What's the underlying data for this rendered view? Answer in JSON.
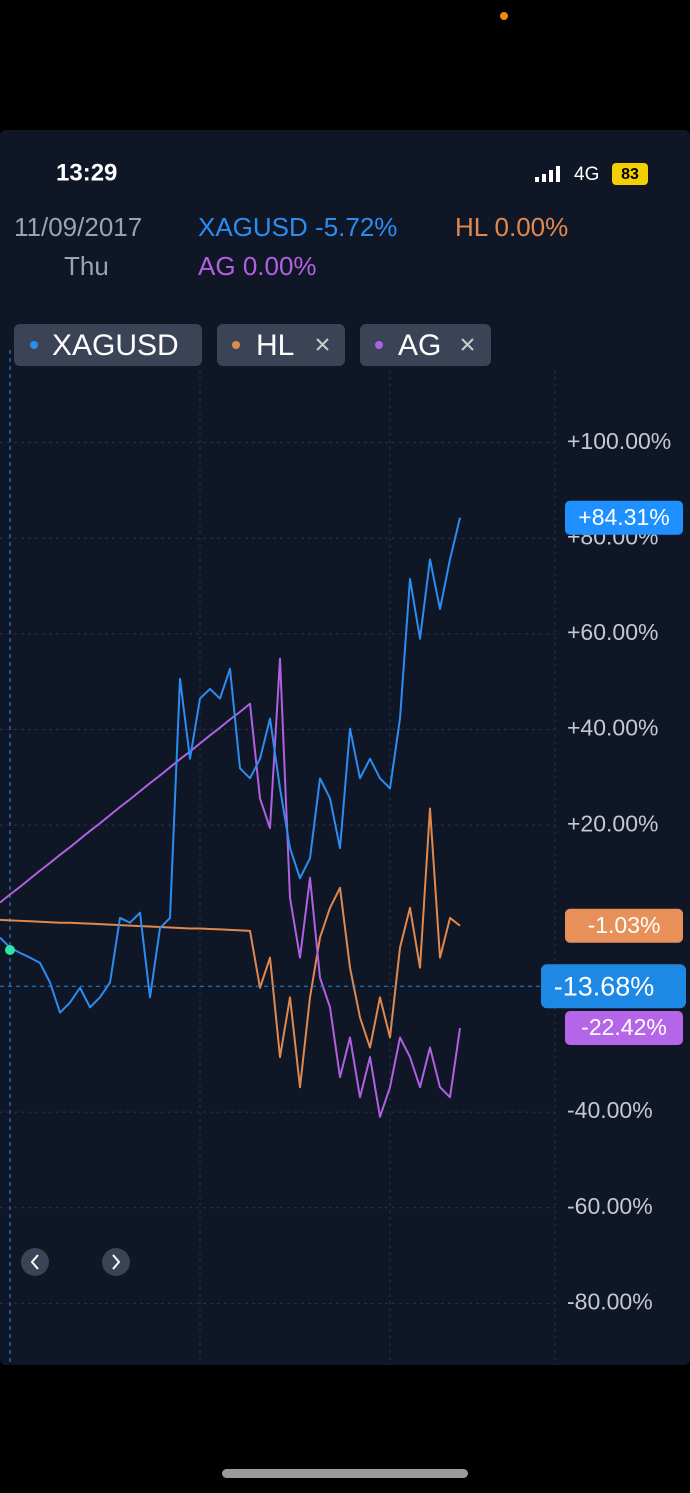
{
  "status_bar": {
    "time": "13:29",
    "network": "4G",
    "battery": "83"
  },
  "header": {
    "date": "11/09/2017",
    "weekday": "Thu",
    "changes": [
      "-5.72%",
      "0.00%",
      "0.00%"
    ]
  },
  "chart_data": {
    "type": "line",
    "categories": [
      null,
      null,
      null,
      null,
      null,
      null,
      null,
      null,
      null,
      null,
      null,
      null,
      null,
      null,
      null,
      null,
      null,
      null,
      null,
      null,
      null,
      null,
      null,
      null,
      null,
      null,
      null,
      null,
      null,
      null,
      null,
      null,
      null,
      null,
      null,
      null,
      null,
      null,
      null,
      null,
      null,
      null,
      null,
      null,
      null,
      null,
      null
    ],
    "series": [
      {
        "name": "XAGUSD",
        "color": "#2d8cf0",
        "values": [
          -3.5,
          -5.6,
          -6.7,
          -7.7,
          -8.8,
          -12.9,
          -19.2,
          -17.1,
          -14.0,
          -18.1,
          -16.0,
          -12.9,
          0.6,
          -0.4,
          1.7,
          -16.0,
          -1.5,
          0.6,
          50.6,
          33.9,
          46.5,
          48.5,
          46.5,
          52.7,
          31.9,
          29.8,
          33.9,
          42.3,
          27.7,
          15.2,
          8.9,
          13.1,
          29.8,
          25.6,
          15.2,
          40.2,
          29.8,
          33.9,
          29.8,
          27.7,
          42.3,
          71.5,
          59.0,
          75.6,
          65.2,
          75.6,
          84.31
        ]
      },
      {
        "name": "HL",
        "color": "#e0894f",
        "values": [
          0.2,
          0.1,
          0.0,
          -0.1,
          -0.2,
          -0.3,
          -0.4,
          -0.4,
          -0.5,
          -0.6,
          -0.7,
          -0.8,
          -0.9,
          -1.0,
          -1.1,
          -1.2,
          -1.3,
          -1.4,
          -1.5,
          -1.6,
          -1.6,
          -1.7,
          -1.8,
          -1.9,
          -2.0,
          -2.1,
          -14.0,
          -7.7,
          -28.5,
          -16.0,
          -34.8,
          -16.0,
          -3.5,
          2.7,
          6.9,
          -9.8,
          -20.2,
          -26.5,
          -16.0,
          -24.4,
          -5.6,
          2.7,
          -9.8,
          23.5,
          -7.7,
          0.6,
          -1.03
        ]
      },
      {
        "name": "AG",
        "color": "#b061e0",
        "values": [
          3.8,
          5.5,
          7.1,
          8.8,
          10.5,
          12.1,
          13.8,
          15.4,
          17.1,
          18.8,
          20.4,
          22.1,
          23.8,
          25.4,
          27.1,
          28.8,
          30.4,
          32.1,
          33.8,
          35.4,
          37.1,
          38.8,
          40.4,
          42.1,
          43.7,
          45.4,
          25.6,
          19.4,
          54.8,
          4.8,
          -7.7,
          9.0,
          -11.9,
          -18.1,
          -32.7,
          -24.4,
          -36.9,
          -28.5,
          -41.0,
          -34.8,
          -24.4,
          -28.5,
          -34.8,
          -26.5,
          -34.8,
          -36.9,
          -22.42
        ]
      }
    ],
    "ylim": [
      -92.9,
      115.2
    ],
    "yticks": [
      {
        "value": 100,
        "label": "+100.00%"
      },
      {
        "value": 80,
        "label": "+80.00%"
      },
      {
        "value": 60,
        "label": "+60.00%"
      },
      {
        "value": 40,
        "label": "+40.00%"
      },
      {
        "value": 20,
        "label": "+20.00%"
      },
      {
        "value": -40,
        "label": "-40.00%"
      },
      {
        "value": -60,
        "label": "-60.00%"
      },
      {
        "value": -80,
        "label": "-80.00%"
      }
    ],
    "grid": true,
    "price_labels": [
      {
        "value": 84.31,
        "label": "+84.31%",
        "color": "#1e90ff"
      },
      {
        "value": -1.03,
        "label": "-1.03%",
        "color": "#e8905a"
      },
      {
        "value": -22.42,
        "label": "-22.42%",
        "color": "#b565e8"
      }
    ],
    "crosshair": {
      "value": -13.68,
      "label": "-13.68%",
      "color": "#1e88e5"
    }
  }
}
